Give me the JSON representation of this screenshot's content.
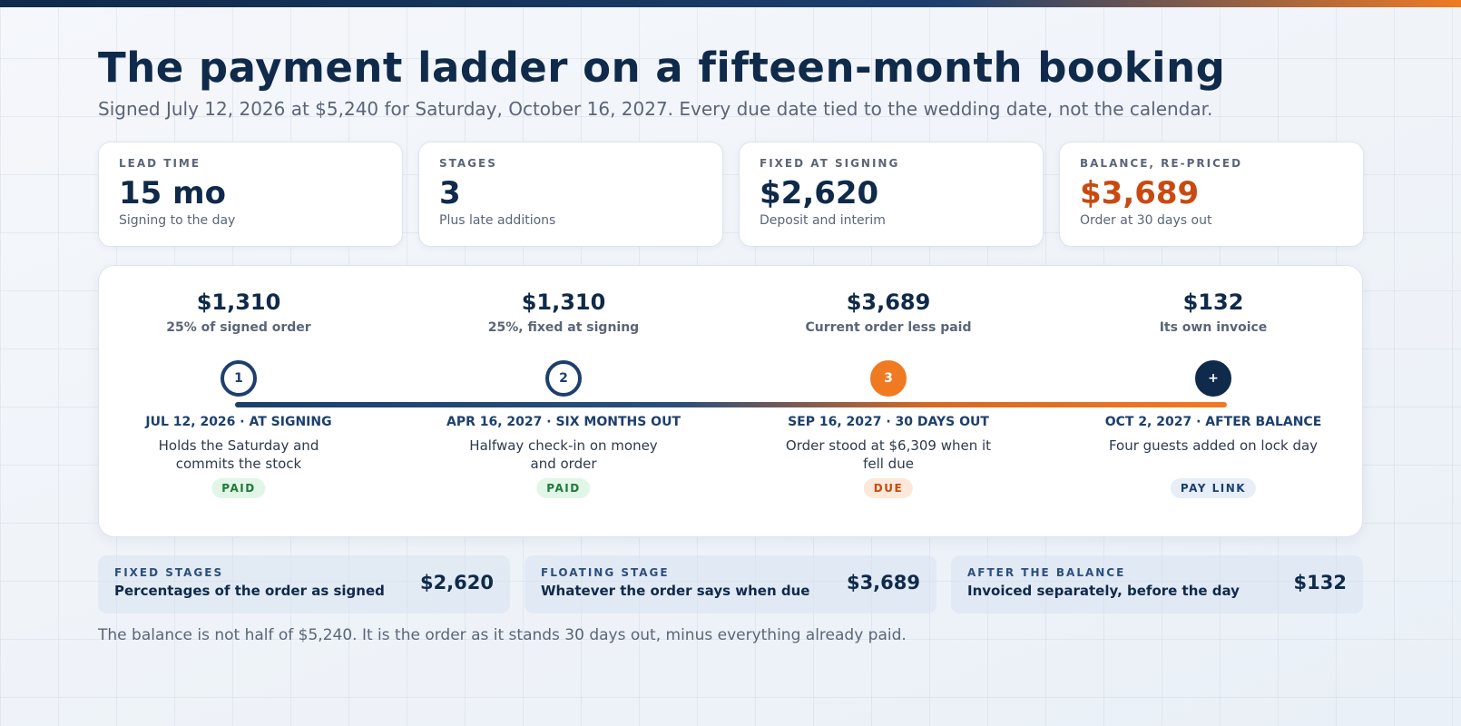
{
  "header": {
    "title": "The payment ladder on a fifteen-month booking",
    "subtitle": "Signed July 12, 2026 at $5,240 for Saturday, October 16, 2027. Every due date tied to the wedding date, not the calendar."
  },
  "stats": [
    {
      "label": "LEAD TIME",
      "value": "15 mo",
      "note": "Signing to the day"
    },
    {
      "label": "STAGES",
      "value": "3",
      "note": "Plus late additions"
    },
    {
      "label": "FIXED AT SIGNING",
      "value": "$2,620",
      "note": "Deposit and interim"
    },
    {
      "label": "BALANCE, RE-PRICED",
      "value": "$3,689",
      "note": "Order at 30 days out"
    }
  ],
  "timeline": {
    "stages": [
      {
        "amount": "$1,310",
        "basis": "25% of signed order",
        "marker": "1",
        "date": "JUL 12, 2026 · AT SIGNING",
        "desc": "Holds the Saturday and commits the stock",
        "status": "PAID"
      },
      {
        "amount": "$1,310",
        "basis": "25%, fixed at signing",
        "marker": "2",
        "date": "APR 16, 2027 · SIX MONTHS OUT",
        "desc": "Halfway check-in on money and order",
        "status": "PAID"
      },
      {
        "amount": "$3,689",
        "basis": "Current order less paid",
        "marker": "3",
        "date": "SEP 16, 2027 · 30 DAYS OUT",
        "desc": "Order stood at $6,309 when it fell due",
        "status": "DUE"
      },
      {
        "amount": "$132",
        "basis": "Its own invoice",
        "marker": "+",
        "date": "OCT 2, 2027 · AFTER BALANCE",
        "desc": "Four guests added on lock day",
        "status": "PAY LINK"
      }
    ]
  },
  "summaries": [
    {
      "label": "FIXED STAGES",
      "desc": "Percentages of the order as signed",
      "amount": "$2,620"
    },
    {
      "label": "FLOATING STAGE",
      "desc": "Whatever the order says when due",
      "amount": "$3,689"
    },
    {
      "label": "AFTER THE BALANCE",
      "desc": "Invoiced separately, before the day",
      "amount": "$132"
    }
  ],
  "footer": "The balance is not half of $5,240. It is the order as it stands 30 days out, minus everything already paid.",
  "colors": {
    "navy": "#0f2a4a",
    "accent_orange": "#f07a22",
    "balance_text": "#c94a10",
    "paid_green": "#1f7a3a"
  }
}
